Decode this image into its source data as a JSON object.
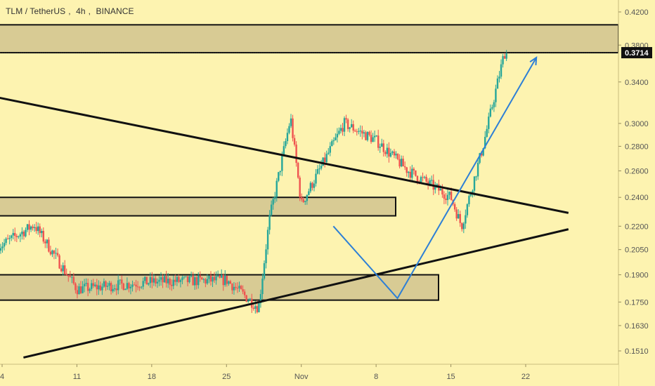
{
  "header": {
    "symbol": "TLM / TetherUS",
    "interval": "4h",
    "exchange": "BINANCE"
  },
  "colors": {
    "background": "#fdf3b0",
    "zone_fill": "#d8cb94",
    "up": "#26a69a",
    "down": "#ef5350",
    "trendline": "#111111",
    "arrow": "#2d7fd6",
    "price_label_bg": "#111111"
  },
  "chart_data": {
    "type": "candlestick",
    "price_axis": {
      "scale": "log",
      "ticks": [
        "0.4200",
        "0.3800",
        "0.3400",
        "0.3000",
        "0.2800",
        "0.2600",
        "0.2400",
        "0.2200",
        "0.2050",
        "0.1900",
        "0.1750",
        "0.1630",
        "0.1510"
      ]
    },
    "time_axis": {
      "ticks": [
        "4",
        "11",
        "18",
        "25",
        "Nov",
        "8",
        "15",
        "22"
      ]
    },
    "last_price": "0.3714",
    "candles_summary": [
      {
        "date": "Oct 4",
        "close": 0.208
      },
      {
        "date": "Oct 7",
        "close": 0.221
      },
      {
        "date": "Oct 11",
        "close": 0.182
      },
      {
        "date": "Oct 18",
        "close": 0.186
      },
      {
        "date": "Oct 25",
        "close": 0.187
      },
      {
        "date": "Oct 28",
        "close": 0.172
      },
      {
        "date": "Oct 29",
        "close": 0.224
      },
      {
        "date": "Oct 31",
        "close": 0.305
      },
      {
        "date": "Nov 1",
        "close": 0.235
      },
      {
        "date": "Nov 5",
        "close": 0.3
      },
      {
        "date": "Nov 8",
        "close": 0.285
      },
      {
        "date": "Nov 11",
        "close": 0.26
      },
      {
        "date": "Nov 15",
        "close": 0.24
      },
      {
        "date": "Nov 16",
        "close": 0.22
      },
      {
        "date": "Nov 18",
        "close": 0.28
      },
      {
        "date": "Nov 20",
        "close": 0.371
      }
    ],
    "zones": [
      {
        "from": 0.3714,
        "to": 0.404
      },
      {
        "from": 0.227,
        "to": 0.24
      },
      {
        "from": 0.176,
        "to": 0.19
      }
    ],
    "trendlines": [
      {
        "from": {
          "date": "Oct 1",
          "price": 0.33
        },
        "to": {
          "date": "Nov 26",
          "price": 0.229
        }
      },
      {
        "from": {
          "date": "Oct 6",
          "price": 0.148
        },
        "to": {
          "date": "Nov 26",
          "price": 0.218
        }
      }
    ],
    "arrow_path": [
      {
        "date": "Nov 4",
        "price": 0.22
      },
      {
        "date": "Nov 10",
        "price": 0.177
      },
      {
        "date": "Nov 23",
        "price": 0.366
      }
    ]
  }
}
